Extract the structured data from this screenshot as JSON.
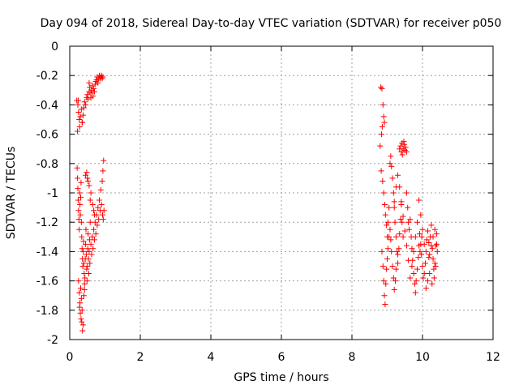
{
  "chart_data": {
    "type": "scatter",
    "title": "Day 094 of 2018, Sidereal Day-to-day VTEC variation (SDTVAR) for receiver p050",
    "xlabel": "GPS time / hours",
    "ylabel": "SDTVAR / TECUs",
    "xlim": [
      0,
      12
    ],
    "ylim": [
      -2,
      0
    ],
    "xticks": [
      "0",
      "2",
      "4",
      "6",
      "8",
      "10",
      "12"
    ],
    "yticks": [
      "0",
      "-0.2",
      "-0.4",
      "-0.6",
      "-0.8",
      "-1",
      "-1.2",
      "-1.4",
      "-1.6",
      "-1.8",
      "-2"
    ],
    "grid": true,
    "marker": "+",
    "color": "#ff0000",
    "series": [
      {
        "name": "SDTVAR",
        "points": [
          [
            0.2,
            -0.37
          ],
          [
            0.23,
            -0.4
          ],
          [
            0.25,
            -0.45
          ],
          [
            0.27,
            -0.5
          ],
          [
            0.22,
            -0.58
          ],
          [
            0.28,
            -0.55
          ],
          [
            0.3,
            -0.48
          ],
          [
            0.33,
            -0.43
          ],
          [
            0.35,
            -0.52
          ],
          [
            0.38,
            -0.47
          ],
          [
            0.4,
            -0.42
          ],
          [
            0.42,
            -0.38
          ],
          [
            0.45,
            -0.4
          ],
          [
            0.48,
            -0.35
          ],
          [
            0.5,
            -0.33
          ],
          [
            0.52,
            -0.36
          ],
          [
            0.55,
            -0.31
          ],
          [
            0.57,
            -0.28
          ],
          [
            0.6,
            -0.32
          ],
          [
            0.62,
            -0.3
          ],
          [
            0.64,
            -0.27
          ],
          [
            0.66,
            -0.34
          ],
          [
            0.68,
            -0.29
          ],
          [
            0.7,
            -0.31
          ],
          [
            0.72,
            -0.26
          ],
          [
            0.74,
            -0.24
          ],
          [
            0.76,
            -0.23
          ],
          [
            0.78,
            -0.21
          ],
          [
            0.8,
            -0.25
          ],
          [
            0.82,
            -0.22
          ],
          [
            0.84,
            -0.2
          ],
          [
            0.86,
            -0.22
          ],
          [
            0.88,
            -0.21
          ],
          [
            0.9,
            -0.2
          ],
          [
            0.92,
            -0.22
          ],
          [
            0.94,
            -0.21
          ],
          [
            0.55,
            -0.25
          ],
          [
            0.6,
            -0.35
          ],
          [
            0.36,
            -0.52
          ],
          [
            0.24,
            -0.37
          ],
          [
            0.21,
            -0.83
          ],
          [
            0.22,
            -0.9
          ],
          [
            0.23,
            -0.97
          ],
          [
            0.24,
            -1.05
          ],
          [
            0.25,
            -1.12
          ],
          [
            0.26,
            -1.18
          ],
          [
            0.27,
            -1.25
          ],
          [
            0.28,
            -1.0
          ],
          [
            0.29,
            -1.08
          ],
          [
            0.3,
            -1.15
          ],
          [
            0.31,
            -1.03
          ],
          [
            0.32,
            -0.93
          ],
          [
            0.33,
            -1.2
          ],
          [
            0.34,
            -1.3
          ],
          [
            0.35,
            -1.38
          ],
          [
            0.36,
            -1.45
          ],
          [
            0.37,
            -1.5
          ],
          [
            0.38,
            -1.4
          ],
          [
            0.39,
            -1.33
          ],
          [
            0.4,
            -1.48
          ],
          [
            0.41,
            -1.55
          ],
          [
            0.42,
            -1.62
          ],
          [
            0.43,
            -1.58
          ],
          [
            0.44,
            -1.45
          ],
          [
            0.45,
            -1.35
          ],
          [
            0.46,
            -1.25
          ],
          [
            0.47,
            -1.42
          ],
          [
            0.48,
            -1.52
          ],
          [
            0.49,
            -1.6
          ],
          [
            0.5,
            -1.5
          ],
          [
            0.51,
            -1.38
          ],
          [
            0.52,
            -1.28
          ],
          [
            0.53,
            -1.45
          ],
          [
            0.54,
            -1.55
          ],
          [
            0.55,
            -1.4
          ],
          [
            0.56,
            -1.32
          ],
          [
            0.57,
            -1.48
          ],
          [
            0.58,
            -1.2
          ],
          [
            0.6,
            -1.35
          ],
          [
            0.62,
            -1.42
          ],
          [
            0.64,
            -1.3
          ],
          [
            0.66,
            -1.38
          ],
          [
            0.68,
            -1.25
          ],
          [
            0.7,
            -1.32
          ],
          [
            0.72,
            -1.2
          ],
          [
            0.74,
            -1.28
          ],
          [
            0.76,
            -1.15
          ],
          [
            0.78,
            -1.22
          ],
          [
            0.8,
            -1.1
          ],
          [
            0.82,
            -1.18
          ],
          [
            0.84,
            -1.05
          ],
          [
            0.86,
            -1.12
          ],
          [
            0.88,
            -0.98
          ],
          [
            0.9,
            -1.08
          ],
          [
            0.92,
            -0.92
          ],
          [
            0.94,
            -0.85
          ],
          [
            0.96,
            -0.78
          ],
          [
            0.97,
            -1.12
          ],
          [
            0.95,
            -1.18
          ],
          [
            0.93,
            -1.15
          ],
          [
            0.45,
            -0.88
          ],
          [
            0.5,
            -0.9
          ],
          [
            0.55,
            -0.95
          ],
          [
            0.6,
            -1.0
          ],
          [
            0.65,
            -1.08
          ],
          [
            0.7,
            -1.15
          ],
          [
            0.48,
            -0.86
          ],
          [
            0.52,
            -0.92
          ],
          [
            0.58,
            -1.05
          ],
          [
            0.68,
            -1.12
          ],
          [
            0.25,
            -1.6
          ],
          [
            0.27,
            -1.68
          ],
          [
            0.29,
            -1.75
          ],
          [
            0.3,
            -1.82
          ],
          [
            0.32,
            -1.86
          ],
          [
            0.34,
            -1.88
          ],
          [
            0.36,
            -1.94
          ],
          [
            0.33,
            -1.72
          ],
          [
            0.31,
            -1.65
          ],
          [
            0.28,
            -1.78
          ],
          [
            0.35,
            -1.8
          ],
          [
            0.4,
            -1.7
          ],
          [
            0.42,
            -1.66
          ],
          [
            0.38,
            -1.9
          ],
          [
            8.82,
            -0.28
          ],
          [
            8.85,
            -0.29
          ],
          [
            8.88,
            -0.4
          ],
          [
            8.9,
            -0.48
          ],
          [
            8.92,
            -0.52
          ],
          [
            8.86,
            -0.55
          ],
          [
            8.84,
            -0.6
          ],
          [
            8.8,
            -0.68
          ],
          [
            8.83,
            -0.85
          ],
          [
            8.87,
            -0.92
          ],
          [
            8.9,
            -1.0
          ],
          [
            8.93,
            -1.08
          ],
          [
            8.95,
            -1.15
          ],
          [
            8.98,
            -1.22
          ],
          [
            9.0,
            -1.3
          ],
          [
            9.02,
            -1.2
          ],
          [
            9.05,
            -1.1
          ],
          [
            9.08,
            -0.8
          ],
          [
            9.1,
            -0.75
          ],
          [
            9.12,
            -0.82
          ],
          [
            9.15,
            -0.9
          ],
          [
            9.18,
            -1.0
          ],
          [
            9.2,
            -1.1
          ],
          [
            9.22,
            -1.2
          ],
          [
            9.25,
            -1.3
          ],
          [
            9.28,
            -1.4
          ],
          [
            9.3,
            -1.48
          ],
          [
            9.33,
            -1.38
          ],
          [
            9.35,
            -1.28
          ],
          [
            9.38,
            -1.18
          ],
          [
            9.4,
            -1.08
          ],
          [
            9.42,
            -1.2
          ],
          [
            9.45,
            -1.3
          ],
          [
            8.85,
            -1.4
          ],
          [
            8.88,
            -1.5
          ],
          [
            8.9,
            -1.6
          ],
          [
            8.92,
            -1.7
          ],
          [
            8.94,
            -1.76
          ],
          [
            8.96,
            -1.62
          ],
          [
            8.98,
            -1.52
          ],
          [
            9.0,
            -1.45
          ],
          [
            9.02,
            -1.38
          ],
          [
            9.05,
            -1.3
          ],
          [
            9.08,
            -1.25
          ],
          [
            9.1,
            -1.32
          ],
          [
            9.12,
            -1.4
          ],
          [
            9.15,
            -1.5
          ],
          [
            9.18,
            -1.58
          ],
          [
            9.2,
            -1.66
          ],
          [
            9.23,
            -1.6
          ],
          [
            9.25,
            -1.52
          ],
          [
            9.3,
            -1.42
          ],
          [
            9.35,
            -0.7
          ],
          [
            9.38,
            -0.68
          ],
          [
            9.4,
            -0.72
          ],
          [
            9.42,
            -0.66
          ],
          [
            9.45,
            -0.7
          ],
          [
            9.48,
            -0.67
          ],
          [
            9.5,
            -0.71
          ],
          [
            9.52,
            -0.69
          ],
          [
            9.55,
            -0.72
          ],
          [
            9.43,
            -0.74
          ],
          [
            9.47,
            -0.65
          ],
          [
            9.55,
            -1.0
          ],
          [
            9.58,
            -1.1
          ],
          [
            9.6,
            -1.2
          ],
          [
            9.62,
            -1.25
          ],
          [
            9.65,
            -1.18
          ],
          [
            9.68,
            -1.3
          ],
          [
            9.7,
            -1.38
          ],
          [
            9.72,
            -1.46
          ],
          [
            9.75,
            -1.55
          ],
          [
            9.78,
            -1.62
          ],
          [
            9.8,
            -1.68
          ],
          [
            9.82,
            -1.6
          ],
          [
            9.85,
            -1.52
          ],
          [
            9.88,
            -1.44
          ],
          [
            9.9,
            -1.36
          ],
          [
            9.92,
            -1.28
          ],
          [
            9.95,
            -1.35
          ],
          [
            9.97,
            -1.42
          ],
          [
            10.0,
            -1.5
          ],
          [
            10.02,
            -1.58
          ],
          [
            10.05,
            -1.55
          ],
          [
            10.08,
            -1.48
          ],
          [
            10.1,
            -1.4
          ],
          [
            10.12,
            -1.32
          ],
          [
            10.15,
            -1.26
          ],
          [
            10.18,
            -1.34
          ],
          [
            10.2,
            -1.42
          ],
          [
            10.22,
            -1.3
          ],
          [
            10.25,
            -1.22
          ],
          [
            10.28,
            -1.38
          ],
          [
            10.3,
            -1.45
          ],
          [
            10.32,
            -1.52
          ],
          [
            10.35,
            -1.48
          ],
          [
            10.38,
            -1.36
          ],
          [
            10.4,
            -1.28
          ],
          [
            10.42,
            -1.4
          ],
          [
            10.33,
            -1.58
          ],
          [
            10.37,
            -1.5
          ],
          [
            10.27,
            -1.62
          ],
          [
            9.9,
            -1.05
          ],
          [
            9.95,
            -1.15
          ],
          [
            10.0,
            -1.25
          ],
          [
            10.05,
            -1.35
          ],
          [
            9.85,
            -1.2
          ],
          [
            9.8,
            -1.3
          ],
          [
            9.75,
            -1.4
          ],
          [
            9.7,
            -1.5
          ],
          [
            9.65,
            -1.58
          ],
          [
            9.6,
            -1.46
          ],
          [
            9.55,
            -1.36
          ],
          [
            9.5,
            -1.26
          ],
          [
            9.45,
            -1.16
          ],
          [
            9.4,
            -1.06
          ],
          [
            9.35,
            -0.96
          ],
          [
            9.3,
            -0.88
          ],
          [
            9.25,
            -0.96
          ],
          [
            9.2,
            -1.06
          ],
          [
            10.15,
            -1.6
          ],
          [
            10.2,
            -1.55
          ],
          [
            10.1,
            -1.65
          ],
          [
            9.98,
            -1.3
          ],
          [
            9.93,
            -1.4
          ],
          [
            10.4,
            -1.35
          ],
          [
            10.35,
            -1.25
          ],
          [
            10.3,
            -1.3
          ],
          [
            10.25,
            -1.36
          ],
          [
            10.18,
            -1.44
          ]
        ]
      }
    ]
  }
}
